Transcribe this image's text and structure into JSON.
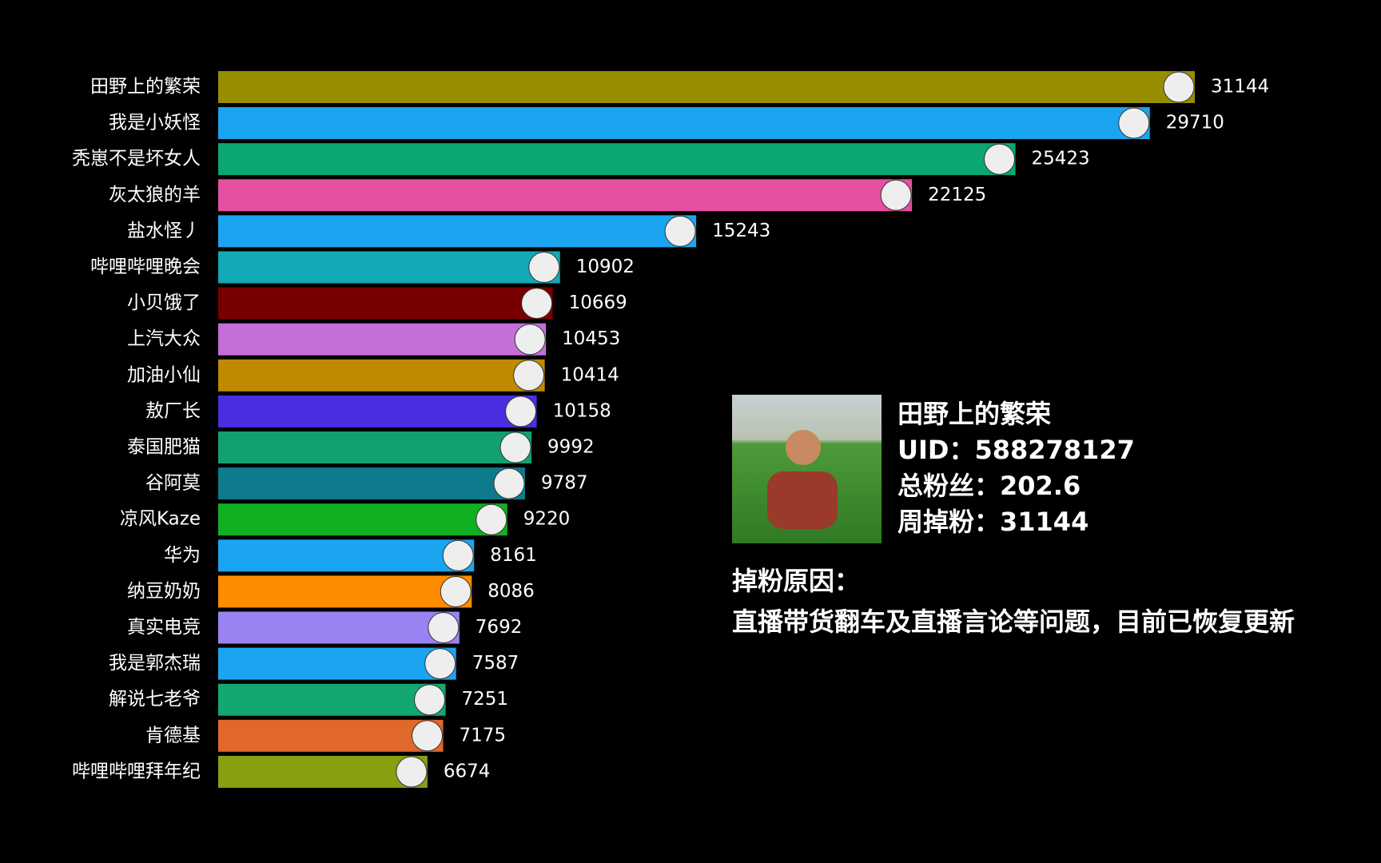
{
  "chart_data": {
    "type": "bar",
    "orientation": "horizontal",
    "categories": [
      "田野上的繁荣",
      "我是小妖怪",
      "秃崽不是坏女人",
      "灰太狼的羊",
      "盐水怪丿",
      "哔哩哔哩晚会",
      "小贝饿了",
      "上汽大众",
      "加油小仙",
      "敖厂长",
      "泰国肥猫",
      "谷阿莫",
      "凉风Kaze",
      "华为",
      "纳豆奶奶",
      "真实电竞",
      "我是郭杰瑞",
      "解说七老爷",
      "肯德基",
      "哔哩哔哩拜年纪"
    ],
    "values": [
      31144,
      29710,
      25423,
      22125,
      15243,
      10902,
      10669,
      10453,
      10414,
      10158,
      9992,
      9787,
      9220,
      8161,
      8086,
      7692,
      7587,
      7251,
      7175,
      6674
    ],
    "colors": [
      "#978d00",
      "#1ba5f0",
      "#0aa774",
      "#e64fa0",
      "#1ba5f0",
      "#13a9b5",
      "#760000",
      "#c46ed8",
      "#bf8900",
      "#4a2fe0",
      "#12a070",
      "#0d7b8b",
      "#11b022",
      "#1ba5f0",
      "#ff8b00",
      "#9b82f2",
      "#1ba5f0",
      "#12a870",
      "#e0682a",
      "#86a010"
    ]
  },
  "info_panel": {
    "name": "田野上的繁荣",
    "lines": [
      "UID：588278127",
      "总粉丝：202.6",
      "周掉粉：31144"
    ],
    "reason_title": "掉粉原因：",
    "reason": "直播带货翻车及直播言论等问题，目前已恢复更新"
  }
}
